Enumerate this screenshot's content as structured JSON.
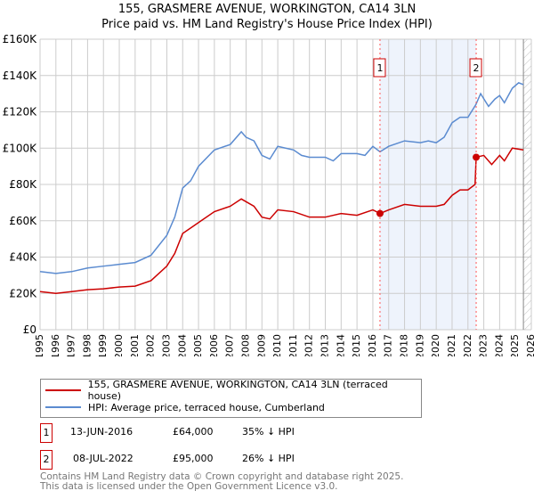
{
  "chart_data": {
    "type": "line",
    "title": "155, GRASMERE AVENUE, WORKINGTON, CA14 3LN",
    "subtitle": "Price paid vs. HM Land Registry's House Price Index (HPI)",
    "xlim": [
      1995,
      2026
    ],
    "ylim": [
      0,
      160000
    ],
    "x_ticks": [
      "1995",
      "1996",
      "1997",
      "1998",
      "1999",
      "2000",
      "2001",
      "2002",
      "2003",
      "2004",
      "2005",
      "2006",
      "2007",
      "2008",
      "2009",
      "2010",
      "2011",
      "2012",
      "2013",
      "2014",
      "2015",
      "2016",
      "2017",
      "2018",
      "2019",
      "2020",
      "2021",
      "2022",
      "2023",
      "2024",
      "2025",
      "2026"
    ],
    "y_ticks": [
      {
        "v": 0,
        "label": "£0"
      },
      {
        "v": 20000,
        "label": "£20K"
      },
      {
        "v": 40000,
        "label": "£40K"
      },
      {
        "v": 60000,
        "label": "£60K"
      },
      {
        "v": 80000,
        "label": "£80K"
      },
      {
        "v": 100000,
        "label": "£100K"
      },
      {
        "v": 120000,
        "label": "£120K"
      },
      {
        "v": 140000,
        "label": "£140K"
      },
      {
        "v": 160000,
        "label": "£160K"
      }
    ],
    "grid": true,
    "shaded_range": [
      2016.45,
      2022.52
    ],
    "hatched_from": 2025.5,
    "series": [
      {
        "name": "155, GRASMERE AVENUE, WORKINGTON, CA14 3LN (terraced house)",
        "color": "#cc0000",
        "x": [
          1995,
          1996,
          1997,
          1998,
          1999,
          2000,
          2001,
          2002,
          2003,
          2003.5,
          2004,
          2005,
          2006,
          2007,
          2007.7,
          2008.5,
          2009,
          2009.5,
          2010,
          2011,
          2012,
          2013,
          2014,
          2015,
          2016,
          2016.45,
          2017,
          2018,
          2019,
          2020,
          2020.5,
          2021,
          2021.5,
          2022,
          2022.45,
          2022.52,
          2023,
          2023.5,
          2024,
          2024.3,
          2024.8,
          2025.5
        ],
        "y": [
          21000,
          20000,
          21000,
          22000,
          22500,
          23500,
          24000,
          27000,
          35000,
          42000,
          53000,
          59000,
          65000,
          68000,
          72000,
          68000,
          62000,
          61000,
          66000,
          65000,
          62000,
          62000,
          64000,
          63000,
          66000,
          64000,
          66000,
          69000,
          68000,
          68000,
          69000,
          74000,
          77000,
          77000,
          80000,
          95000,
          96000,
          91000,
          96000,
          93000,
          100000,
          99000
        ]
      },
      {
        "name": "HPI: Average price, terraced house, Cumberland",
        "color": "#5b8bd0",
        "x": [
          1995,
          1996,
          1997,
          1998,
          1999,
          2000,
          2001,
          2002,
          2003,
          2003.5,
          2004,
          2004.5,
          2005,
          2006,
          2007,
          2007.7,
          2008,
          2008.5,
          2009,
          2009.5,
          2010,
          2011,
          2011.5,
          2012,
          2013,
          2013.5,
          2014,
          2015,
          2015.5,
          2016,
          2016.45,
          2017,
          2018,
          2019,
          2019.5,
          2020,
          2020.5,
          2021,
          2021.5,
          2022,
          2022.5,
          2022.8,
          2023.3,
          2023.7,
          2024,
          2024.3,
          2024.8,
          2025.2,
          2025.5
        ],
        "y": [
          32000,
          31000,
          32000,
          34000,
          35000,
          36000,
          37000,
          41000,
          52000,
          62000,
          78000,
          82000,
          90000,
          99000,
          102000,
          109000,
          106000,
          104000,
          96000,
          94000,
          101000,
          99000,
          96000,
          95000,
          95000,
          93000,
          97000,
          97000,
          96000,
          101000,
          98000,
          101000,
          104000,
          103000,
          104000,
          103000,
          106000,
          114000,
          117000,
          117000,
          124000,
          130000,
          123000,
          127000,
          129000,
          125000,
          133000,
          136000,
          135000
        ]
      }
    ],
    "sales": [
      {
        "label": "1",
        "x": 2016.45,
        "y": 64000,
        "date": "13-JUN-2016",
        "price": "£64,000",
        "hpi": "35% ↓ HPI"
      },
      {
        "label": "2",
        "x": 2022.52,
        "y": 95000,
        "date": "08-JUL-2022",
        "price": "£95,000",
        "hpi": "26% ↓ HPI"
      }
    ]
  },
  "footer": {
    "line1": "Contains HM Land Registry data © Crown copyright and database right 2025.",
    "line2": "This data is licensed under the Open Government Licence v3.0."
  }
}
